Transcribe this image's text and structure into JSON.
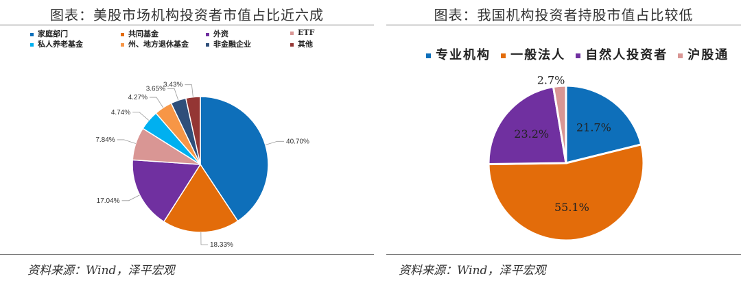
{
  "chart_data": [
    {
      "type": "pie",
      "title": "图表：美股市场机构投资者市值占比近六成",
      "source": "资料来源：Wind，泽平宏观",
      "legend_position": "top",
      "slices": [
        {
          "label": "家庭部门",
          "value": 40.7,
          "value_label": "40.70%",
          "color": "#0E6FBA"
        },
        {
          "label": "共同基金",
          "value": 18.33,
          "value_label": "18.33%",
          "color": "#E36C0A"
        },
        {
          "label": "外资",
          "value": 17.04,
          "value_label": "17.04%",
          "color": "#7030A0"
        },
        {
          "label": "ETF",
          "value": 7.84,
          "value_label": "7.84%",
          "color": "#D99694"
        },
        {
          "label": "私人养老基金",
          "value": 4.74,
          "value_label": "4.74%",
          "color": "#00B0F0"
        },
        {
          "label": "州、地方退休基金",
          "value": 4.27,
          "value_label": "4.27%",
          "color": "#F79646"
        },
        {
          "label": "非金融企业",
          "value": 3.65,
          "value_label": "3.65%",
          "color": "#2F4F7A"
        },
        {
          "label": "其他",
          "value": 3.43,
          "value_label": "3.43%",
          "color": "#943634"
        }
      ]
    },
    {
      "type": "pie",
      "title": "图表：我国机构投资者持股市值占比较低",
      "source": "资料来源：Wind，泽平宏观",
      "legend_position": "top",
      "slices": [
        {
          "label": "专业机构",
          "value": 21.7,
          "value_label": "21.7%",
          "color": "#0E6FBA"
        },
        {
          "label": "一般法人",
          "value": 55.1,
          "value_label": "55.1%",
          "color": "#E36C0A"
        },
        {
          "label": "自然人投资者",
          "value": 23.2,
          "value_label": "23.2%",
          "color": "#7030A0"
        },
        {
          "label": "沪股通",
          "value": 2.7,
          "value_label": "2.7%",
          "color": "#D99694"
        }
      ]
    }
  ]
}
